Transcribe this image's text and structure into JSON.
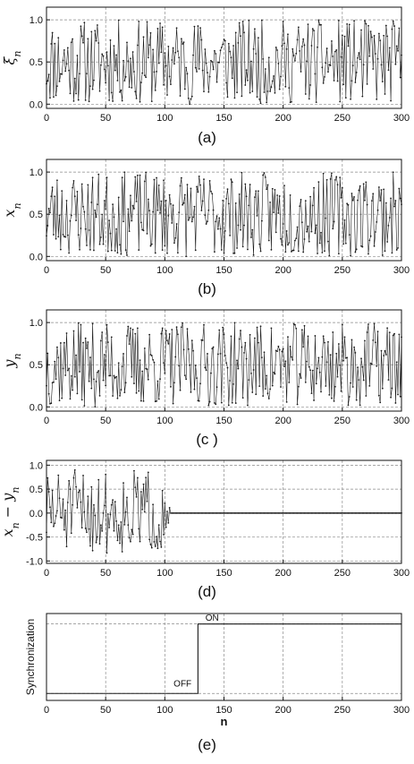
{
  "chart_data": [
    {
      "id": "a",
      "type": "line",
      "caption": "(a)",
      "ylabel": "ξn",
      "xlim": [
        0,
        300
      ],
      "ylim": [
        -0.05,
        1.15
      ],
      "xticks": [
        0,
        50,
        100,
        150,
        200,
        250,
        300
      ],
      "yticks": [
        0.0,
        0.5,
        1.0
      ],
      "ytick_labels": [
        "0.0",
        "0.5",
        "1.0"
      ],
      "grid": true,
      "markers": true,
      "series": [
        {
          "kind": "pseudo-random",
          "n_start": 0,
          "n_end": 300,
          "seed": 11,
          "min": 0.0,
          "max": 1.0
        }
      ]
    },
    {
      "id": "b",
      "type": "line",
      "caption": "(b)",
      "ylabel": "xn",
      "xlim": [
        0,
        300
      ],
      "ylim": [
        -0.05,
        1.15
      ],
      "xticks": [
        0,
        50,
        100,
        150,
        200,
        250,
        300
      ],
      "yticks": [
        0.0,
        0.5,
        1.0
      ],
      "ytick_labels": [
        "0.0",
        "0.5",
        "1.0"
      ],
      "grid": true,
      "markers": true,
      "series": [
        {
          "kind": "pseudo-random",
          "n_start": 0,
          "n_end": 300,
          "seed": 23,
          "min": 0.0,
          "max": 1.0
        }
      ]
    },
    {
      "id": "c",
      "type": "line",
      "caption": "(c )",
      "ylabel": "yn",
      "xlim": [
        0,
        300
      ],
      "ylim": [
        -0.05,
        1.15
      ],
      "xticks": [
        0,
        50,
        100,
        150,
        200,
        250,
        300
      ],
      "yticks": [
        0.0,
        0.5,
        1.0
      ],
      "ytick_labels": [
        "0.0",
        "0.5",
        "1.0"
      ],
      "grid": true,
      "markers": true,
      "series": [
        {
          "kind": "pseudo-random",
          "n_start": 0,
          "n_end": 300,
          "seed": 37,
          "min": 0.0,
          "max": 1.0
        }
      ]
    },
    {
      "id": "d",
      "type": "line",
      "caption": "(d)",
      "ylabel": "xn − yn",
      "xlim": [
        0,
        300
      ],
      "ylim": [
        -1.05,
        1.1
      ],
      "xticks": [
        0,
        50,
        100,
        150,
        200,
        250,
        300
      ],
      "yticks": [
        -1.0,
        -0.5,
        0.0,
        0.5,
        1.0
      ],
      "ytick_labels": [
        "-1.0",
        "-0.5",
        "0.0",
        "0.5",
        "1.0"
      ],
      "grid": true,
      "markers": true,
      "series": [
        {
          "kind": "error-then-zero",
          "n_start": 0,
          "n_end": 300,
          "seed": 51,
          "zero_after": 105,
          "min": -0.85,
          "max": 0.9
        }
      ]
    },
    {
      "id": "e",
      "type": "line",
      "caption": "(e)",
      "ylabel": "Synchronization",
      "xlabel": "n",
      "xlim": [
        0,
        300
      ],
      "ylim": [
        -0.1,
        1.15
      ],
      "xticks": [
        0,
        50,
        100,
        150,
        200,
        250,
        300
      ],
      "yticks": [],
      "ytick_labels": [],
      "grid": true,
      "markers": false,
      "series": [
        {
          "kind": "step",
          "x": [
            0,
            128,
            128,
            300
          ],
          "y": [
            0,
            0,
            1,
            1
          ]
        }
      ],
      "annotations": [
        {
          "text": "OFF",
          "x": 115,
          "y": 0.1
        },
        {
          "text": "ON",
          "x": 140,
          "y": 1.05
        }
      ]
    }
  ]
}
